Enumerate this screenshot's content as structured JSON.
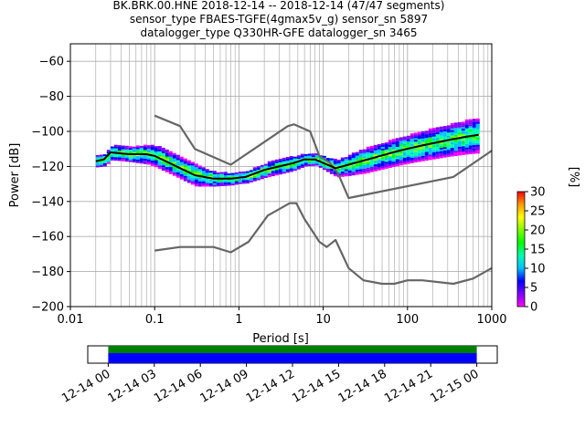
{
  "chart_data": [
    {
      "type": "heatmap",
      "title_lines": [
        "BK.BRK.00.HNE   2018-12-14 -- 2018-12-14  (47/47 segments)",
        "sensor_type FBAES-TGFE(4gmax5v_g) sensor_sn 5897",
        "datalogger_type Q330HR-GFE datalogger_sn 3465"
      ],
      "xlabel": "Period [s]",
      "ylabel": "Power [dB]",
      "xscale": "log",
      "xlim": [
        0.01,
        1000
      ],
      "ylim": [
        -200,
        -50
      ],
      "grid": true,
      "xticks": [
        {
          "value": 0.01,
          "label": "0.01"
        },
        {
          "value": 0.1,
          "label": "0.1"
        },
        {
          "value": 1,
          "label": "1"
        },
        {
          "value": 10,
          "label": "10"
        },
        {
          "value": 100,
          "label": "100"
        },
        {
          "value": 1000,
          "label": "1000"
        }
      ],
      "yticks": [
        {
          "value": -60,
          "label": "−60"
        },
        {
          "value": -80,
          "label": "−80"
        },
        {
          "value": -100,
          "label": "−100"
        },
        {
          "value": -120,
          "label": "−120"
        },
        {
          "value": -140,
          "label": "−140"
        },
        {
          "value": -160,
          "label": "−160"
        },
        {
          "value": -180,
          "label": "−180"
        },
        {
          "value": -200,
          "label": "−200"
        }
      ],
      "colorbar": {
        "label": "[%]",
        "range": [
          0,
          30
        ],
        "ticks": [
          {
            "value": 0,
            "label": "0"
          },
          {
            "value": 5,
            "label": "5"
          },
          {
            "value": 10,
            "label": "10"
          },
          {
            "value": 15,
            "label": "15"
          },
          {
            "value": 20,
            "label": "20"
          },
          {
            "value": 25,
            "label": "25"
          },
          {
            "value": 30,
            "label": "30"
          }
        ],
        "colors": [
          "#ff00ff",
          "#7f00ff",
          "#0000ff",
          "#00bfff",
          "#00ffb0",
          "#00ff00",
          "#7fff00",
          "#ffff00",
          "#ff9900",
          "#ff0000"
        ]
      },
      "series": [
        {
          "name": "",
          "color": "#666666",
          "points": [
            [
              0.1,
              -91
            ],
            [
              0.2,
              -97
            ],
            [
              0.3,
              -110
            ],
            [
              0.8,
              -119
            ],
            [
              3.8,
              -97
            ],
            [
              4.5,
              -96
            ],
            [
              7,
              -100
            ],
            [
              9,
              -114
            ],
            [
              12,
              -118
            ],
            [
              15,
              -124
            ],
            [
              20,
              -138
            ],
            [
              350,
              -126
            ],
            [
              1000,
              -111
            ]
          ]
        },
        {
          "name": "",
          "color": "#666666",
          "points": [
            [
              0.1,
              -168
            ],
            [
              0.2,
              -166
            ],
            [
              0.5,
              -166
            ],
            [
              0.8,
              -169
            ],
            [
              1.3,
              -163
            ],
            [
              2.2,
              -148
            ],
            [
              4,
              -141
            ],
            [
              4.8,
              -141
            ],
            [
              6,
              -150
            ],
            [
              9,
              -163
            ],
            [
              11,
              -166
            ],
            [
              14,
              -162
            ],
            [
              20,
              -178
            ],
            [
              30,
              -185
            ],
            [
              50,
              -187
            ],
            [
              70,
              -187
            ],
            [
              100,
              -185
            ],
            [
              150,
              -185
            ],
            [
              350,
              -187
            ],
            [
              600,
              -184
            ],
            [
              1000,
              -178
            ]
          ]
        },
        {
          "name": "",
          "color": "#000000",
          "points": [
            [
              0.02,
              -117
            ],
            [
              0.025,
              -116
            ],
            [
              0.03,
              -112
            ],
            [
              0.05,
              -113
            ],
            [
              0.08,
              -113
            ],
            [
              0.1,
              -114
            ],
            [
              0.15,
              -118
            ],
            [
              0.2,
              -121
            ],
            [
              0.3,
              -125
            ],
            [
              0.5,
              -127
            ],
            [
              0.8,
              -127
            ],
            [
              1.2,
              -126
            ],
            [
              2,
              -122
            ],
            [
              3,
              -120
            ],
            [
              4.5,
              -118
            ],
            [
              6,
              -116
            ],
            [
              8,
              -116
            ],
            [
              10,
              -118
            ],
            [
              14,
              -121
            ],
            [
              20,
              -119
            ],
            [
              40,
              -115
            ],
            [
              80,
              -111
            ],
            [
              150,
              -108
            ],
            [
              300,
              -105
            ],
            [
              500,
              -103
            ],
            [
              700,
              -102
            ]
          ]
        }
      ],
      "spread": [
        {
          "x": 0.02,
          "width": 3
        },
        {
          "x": 0.03,
          "width": 4
        },
        {
          "x": 0.05,
          "width": 4
        },
        {
          "x": 0.1,
          "width": 6
        },
        {
          "x": 0.2,
          "width": 6
        },
        {
          "x": 0.3,
          "width": 6
        },
        {
          "x": 0.5,
          "width": 4
        },
        {
          "x": 1,
          "width": 3
        },
        {
          "x": 2,
          "width": 4
        },
        {
          "x": 4,
          "width": 4
        },
        {
          "x": 8,
          "width": 3
        },
        {
          "x": 15,
          "width": 5
        },
        {
          "x": 30,
          "width": 7
        },
        {
          "x": 100,
          "width": 8
        },
        {
          "x": 300,
          "width": 9
        },
        {
          "x": 700,
          "width": 10
        }
      ]
    },
    {
      "type": "timeline",
      "xlim": [
        "2018-12-13T22:40",
        "2018-12-15T01:20"
      ],
      "segments": [
        {
          "start": "2018-12-14T00:00",
          "end": "2018-12-15T00:00",
          "color": "#0000ff",
          "lane": "bottom"
        },
        {
          "start": "2018-12-14T00:00",
          "end": "2018-12-15T00:00",
          "color": "#008000",
          "lane": "top"
        }
      ],
      "xticks": [
        {
          "value": "2018-12-14T00:00",
          "label": "12-14 00"
        },
        {
          "value": "2018-12-14T03:00",
          "label": "12-14 03"
        },
        {
          "value": "2018-12-14T06:00",
          "label": "12-14 06"
        },
        {
          "value": "2018-12-14T09:00",
          "label": "12-14 09"
        },
        {
          "value": "2018-12-14T12:00",
          "label": "12-14 12"
        },
        {
          "value": "2018-12-14T15:00",
          "label": "12-14 15"
        },
        {
          "value": "2018-12-14T18:00",
          "label": "12-14 18"
        },
        {
          "value": "2018-12-14T21:00",
          "label": "12-14 21"
        },
        {
          "value": "2018-12-15T00:00",
          "label": "12-15 00"
        }
      ]
    }
  ]
}
